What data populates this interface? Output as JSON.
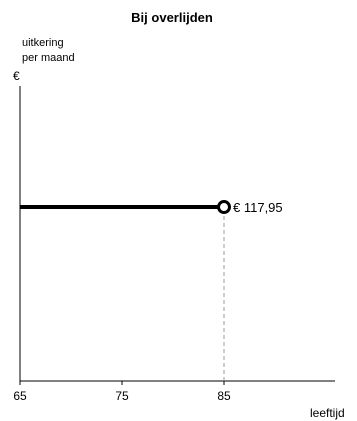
{
  "chart_data": {
    "type": "line",
    "title": "Bij overlijden",
    "ylabel_lines": [
      "uitkering",
      "per maand"
    ],
    "yunit": "€",
    "xlabel": "leeftijd",
    "xlim": [
      65,
      95
    ],
    "ylim": [
      0,
      200
    ],
    "x_ticks": [
      65,
      75,
      85
    ],
    "x_tick_labels": [
      "65",
      "75",
      "85"
    ],
    "grid": false,
    "series": [
      {
        "x": [
          65,
          85
        ],
        "y": [
          117.95,
          117.95
        ],
        "end_marker": "open-circle"
      }
    ],
    "annotations": [
      {
        "x": 85,
        "y": 117.95,
        "text": "€ 117,95"
      }
    ],
    "dashed_guides": [
      {
        "x": 85,
        "y_from": 0,
        "y_to": 117.95
      }
    ],
    "colors": {
      "line": "#000000",
      "axis": "#000000",
      "guide": "#999999"
    }
  }
}
